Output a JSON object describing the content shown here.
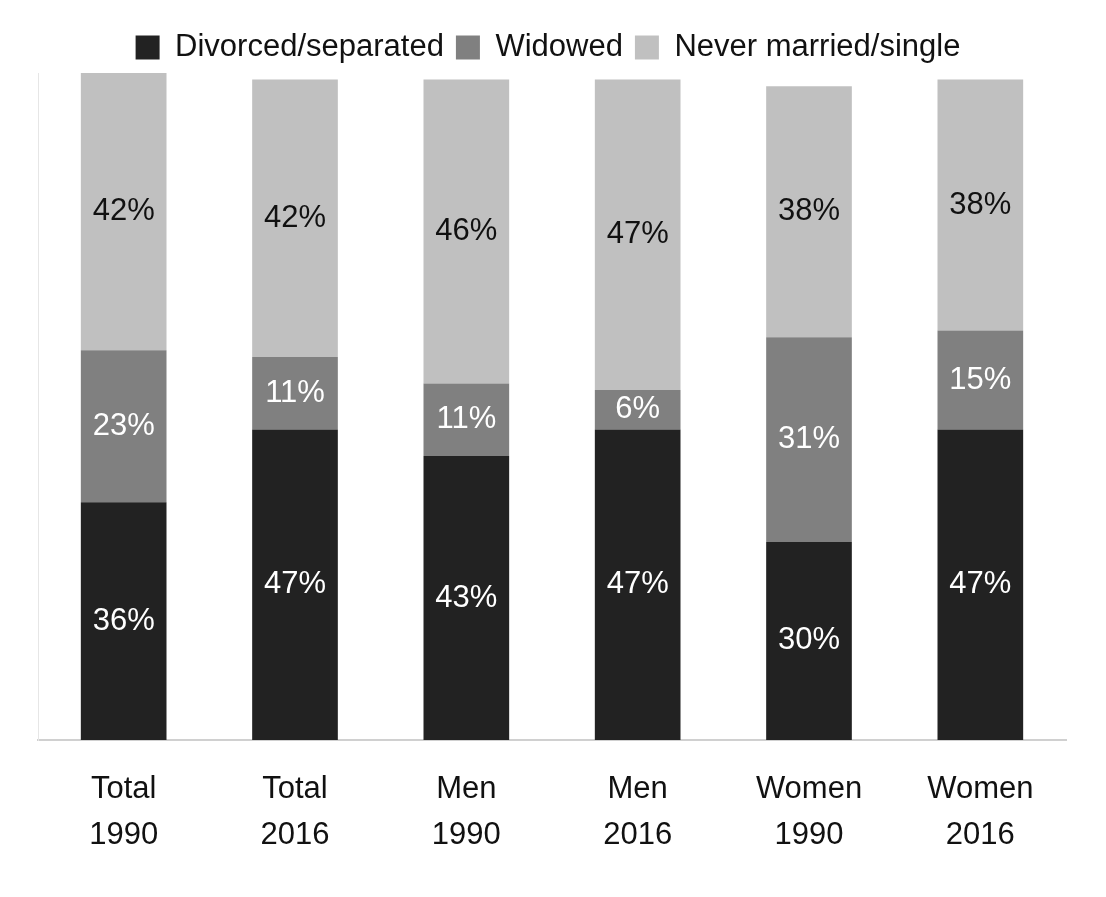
{
  "chart_data": {
    "type": "bar",
    "stacked": true,
    "orientation": "vertical",
    "categories": [
      "Total 1990",
      "Total 2016",
      "Men 1990",
      "Men 2016",
      "Women 1990",
      "Women 2016"
    ],
    "series": [
      {
        "name": "Divorced/separated",
        "color": "#222222",
        "values": [
          36,
          47,
          43,
          47,
          30,
          47
        ],
        "value_labels": [
          "36%",
          "47%",
          "43%",
          "47%",
          "30%",
          "47%"
        ]
      },
      {
        "name": "Widowed",
        "color": "#808080",
        "values": [
          23,
          11,
          11,
          6,
          31,
          15
        ],
        "value_labels": [
          "23%",
          "11%",
          "11%",
          "6%",
          "31%",
          "15%"
        ]
      },
      {
        "name": "Never married/single",
        "color": "#c0c0c0",
        "values": [
          42,
          42,
          46,
          47,
          38,
          38
        ],
        "value_labels": [
          "42%",
          "42%",
          "46%",
          "47%",
          "38%",
          "38%"
        ]
      }
    ],
    "ylim": [
      0,
      101
    ],
    "grid": false,
    "legend": "top",
    "data_labels": true,
    "tick_labels": "x"
  }
}
